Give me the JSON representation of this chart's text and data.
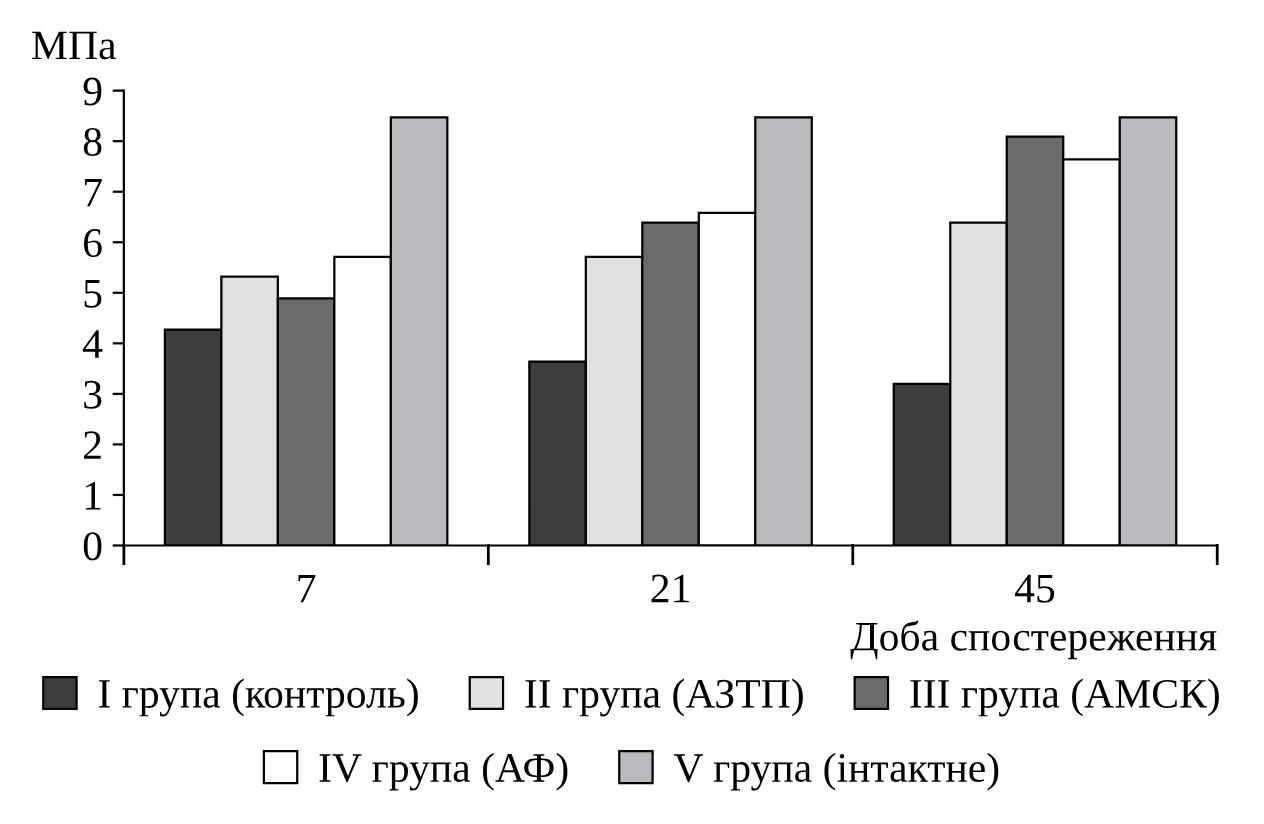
{
  "chart_data": {
    "type": "bar",
    "ylabel": "МПа",
    "xlabel": "Доба спостереження",
    "categories": [
      "7",
      "21",
      "45"
    ],
    "series": [
      {
        "name": "I група (контроль)",
        "color": "#3d3d3d",
        "values": [
          4.27,
          3.64,
          3.2
        ]
      },
      {
        "name": "II група (АЗТП)",
        "color": "#e0e1e3",
        "values": [
          5.32,
          5.71,
          6.39
        ]
      },
      {
        "name": "III група (АМСК)",
        "color": "#6b6b6d",
        "values": [
          4.89,
          6.39,
          8.09
        ]
      },
      {
        "name": "IV група (АФ)",
        "color": "#ffffff",
        "values": [
          5.71,
          6.58,
          7.64
        ]
      },
      {
        "name": "V група (інтактне)",
        "color": "#b9babd",
        "values": [
          8.47,
          8.47,
          8.47
        ]
      }
    ],
    "ylim": [
      0,
      9
    ],
    "yticks": [
      0,
      1,
      2,
      3,
      4,
      5,
      6,
      7,
      8,
      9
    ],
    "grid": false,
    "legend": "bottom"
  }
}
